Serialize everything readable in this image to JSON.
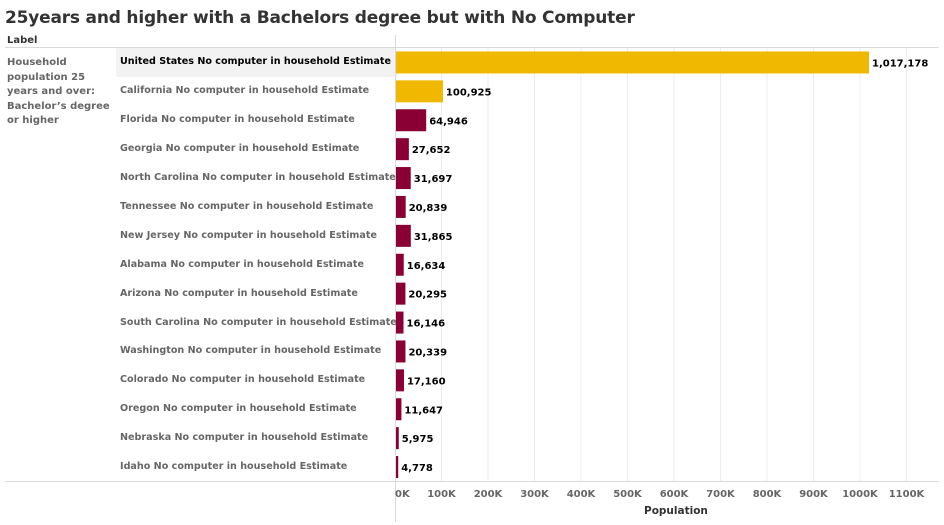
{
  "title": "25years and higher with a Bachelors degree but with No Computer",
  "label_header": "Label",
  "group_label": "Household population 25 years and over: Bachelor’s degree or higher",
  "chart_data": {
    "type": "bar",
    "orientation": "horizontal",
    "categories": [
      "United States No computer in household Estimate",
      "California No computer in household Estimate",
      "Florida No computer in household Estimate",
      "Georgia No computer in household Estimate",
      "North Carolina No computer in household Estimate",
      "Tennessee No computer in household Estimate",
      "New Jersey No computer in household Estimate",
      "Alabama No computer in household Estimate",
      "Arizona No computer in household Estimate",
      "South Carolina No computer in household Estimate",
      "Washington No computer in household Estimate",
      "Colorado No computer in household Estimate",
      "Oregon No computer in household Estimate",
      "Nebraska No computer in household Estimate",
      "Idaho No computer in household Estimate"
    ],
    "values": [
      1017178,
      100925,
      64946,
      27652,
      31697,
      20839,
      31865,
      16634,
      20295,
      16146,
      20339,
      17160,
      11647,
      5975,
      4778
    ],
    "value_labels": [
      "1,017,178",
      "100,925",
      "64,946",
      "27,652",
      "31,697",
      "20,839",
      "31,865",
      "16,634",
      "20,295",
      "16,146",
      "20,339",
      "17,160",
      "11,647",
      "5,975",
      "4,778"
    ],
    "bar_colors": [
      "#f0b800",
      "#f0b800",
      "#8a0035",
      "#8a0035",
      "#8a0035",
      "#8a0035",
      "#8a0035",
      "#8a0035",
      "#8a0035",
      "#8a0035",
      "#8a0035",
      "#8a0035",
      "#8a0035",
      "#8a0035",
      "#8a0035"
    ],
    "xlabel": "Population",
    "xlim": [
      0,
      1100000
    ],
    "xticks": [
      0,
      100000,
      200000,
      300000,
      400000,
      500000,
      600000,
      700000,
      800000,
      900000,
      1000000,
      1100000
    ],
    "xtick_labels": [
      "0K",
      "100K",
      "200K",
      "300K",
      "400K",
      "500K",
      "600K",
      "700K",
      "800K",
      "900K",
      "1000K",
      "1100K"
    ],
    "grid": true
  }
}
